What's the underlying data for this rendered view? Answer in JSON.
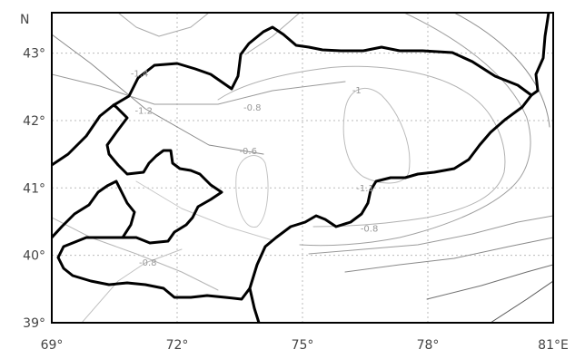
{
  "map": {
    "x_ticks": [
      {
        "value": 69,
        "label": "69°"
      },
      {
        "value": 72,
        "label": "72°"
      },
      {
        "value": 75,
        "label": "75°"
      },
      {
        "value": 78,
        "label": "78°"
      },
      {
        "value": 81,
        "label": "81°E"
      }
    ],
    "y_ticks": [
      {
        "value": 43,
        "label": "43°"
      },
      {
        "value": 42,
        "label": "42°"
      },
      {
        "value": 41,
        "label": "41°"
      },
      {
        "value": 40,
        "label": "40°"
      },
      {
        "value": 39,
        "label": "39°"
      }
    ],
    "y_axis_title": "N",
    "xlim": [
      69,
      81
    ],
    "ylim": [
      39,
      43.6
    ],
    "contour_labels": [
      {
        "text": "-1.4",
        "lon": 71.1,
        "lat": 42.65
      },
      {
        "text": "-1.2",
        "lon": 71.2,
        "lat": 42.1
      },
      {
        "text": "-0.8",
        "lon": 73.8,
        "lat": 42.15
      },
      {
        "text": "-1",
        "lon": 76.3,
        "lat": 42.4
      },
      {
        "text": "-0.6",
        "lon": 73.7,
        "lat": 41.5
      },
      {
        "text": "-1.1",
        "lon": 76.5,
        "lat": 40.95
      },
      {
        "text": "-0.8",
        "lon": 76.6,
        "lat": 40.35
      },
      {
        "text": "-0.8",
        "lon": 71.3,
        "lat": 39.85
      }
    ],
    "colors": {
      "border": "#000000",
      "grid": "#bbbbbb",
      "frame": "#000000"
    }
  }
}
